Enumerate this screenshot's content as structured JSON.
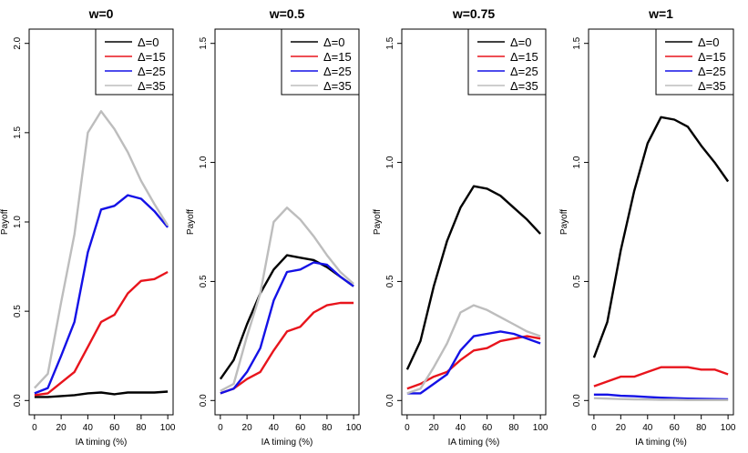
{
  "chart_data": [
    {
      "type": "line",
      "title": "w=0",
      "xlabel": "IA timing (%)",
      "ylabel": "Payoff",
      "x": [
        0,
        10,
        20,
        30,
        40,
        50,
        60,
        70,
        80,
        90,
        100
      ],
      "xlim": [
        0,
        100
      ],
      "ylim": [
        0,
        2.0
      ],
      "xticks": [
        "0",
        "20",
        "40",
        "60",
        "80",
        "100"
      ],
      "yticks": [
        "0.0",
        "0.5",
        "1.0",
        "1.5",
        "2.0"
      ],
      "legend_position": "top-right",
      "grid": false,
      "series": [
        {
          "name": "Δ=0",
          "color": "#000000",
          "values": [
            0.02,
            0.02,
            0.025,
            0.03,
            0.04,
            0.045,
            0.035,
            0.045,
            0.045,
            0.045,
            0.05
          ]
        },
        {
          "name": "Δ=15",
          "color": "#e8141c",
          "values": [
            0.03,
            0.04,
            0.1,
            0.16,
            0.3,
            0.44,
            0.48,
            0.6,
            0.67,
            0.68,
            0.72
          ]
        },
        {
          "name": "Δ=25",
          "color": "#1411e6",
          "values": [
            0.04,
            0.07,
            0.25,
            0.44,
            0.83,
            1.07,
            1.09,
            1.15,
            1.13,
            1.06,
            0.97
          ]
        },
        {
          "name": "Δ=35",
          "color": "#bdbdbd",
          "values": [
            0.07,
            0.15,
            0.55,
            0.93,
            1.5,
            1.62,
            1.52,
            1.39,
            1.23,
            1.1,
            0.98
          ]
        }
      ]
    },
    {
      "type": "line",
      "title": "w=0.5",
      "xlabel": "IA timing (%)",
      "ylabel": "Payoff",
      "x": [
        0,
        10,
        20,
        30,
        40,
        50,
        60,
        70,
        80,
        90,
        100
      ],
      "xlim": [
        0,
        100
      ],
      "ylim": [
        0,
        1.5
      ],
      "xticks": [
        "0",
        "20",
        "40",
        "60",
        "80",
        "100"
      ],
      "yticks": [
        "0.0",
        "0.5",
        "1.0",
        "1.5"
      ],
      "legend_position": "top-right",
      "grid": false,
      "series": [
        {
          "name": "Δ=0",
          "color": "#000000",
          "values": [
            0.09,
            0.17,
            0.32,
            0.45,
            0.55,
            0.61,
            0.6,
            0.59,
            0.56,
            0.52,
            0.48
          ]
        },
        {
          "name": "Δ=15",
          "color": "#e8141c",
          "values": [
            0.03,
            0.05,
            0.09,
            0.12,
            0.21,
            0.29,
            0.31,
            0.37,
            0.4,
            0.41,
            0.41
          ]
        },
        {
          "name": "Δ=25",
          "color": "#1411e6",
          "values": [
            0.03,
            0.05,
            0.12,
            0.22,
            0.42,
            0.54,
            0.55,
            0.58,
            0.57,
            0.52,
            0.48
          ]
        },
        {
          "name": "Δ=35",
          "color": "#bdbdbd",
          "values": [
            0.04,
            0.07,
            0.27,
            0.45,
            0.75,
            0.81,
            0.76,
            0.69,
            0.61,
            0.54,
            0.49
          ]
        }
      ]
    },
    {
      "type": "line",
      "title": "w=0.75",
      "xlabel": "IA timing (%)",
      "ylabel": "Payoff",
      "x": [
        0,
        10,
        20,
        30,
        40,
        50,
        60,
        70,
        80,
        90,
        100
      ],
      "xlim": [
        0,
        100
      ],
      "ylim": [
        0,
        1.5
      ],
      "xticks": [
        "0",
        "20",
        "40",
        "60",
        "80",
        "100"
      ],
      "yticks": [
        "0.0",
        "0.5",
        "1.0",
        "1.5"
      ],
      "legend_position": "top-right",
      "grid": false,
      "series": [
        {
          "name": "Δ=0",
          "color": "#000000",
          "values": [
            0.13,
            0.25,
            0.48,
            0.67,
            0.81,
            0.9,
            0.89,
            0.86,
            0.81,
            0.76,
            0.7
          ]
        },
        {
          "name": "Δ=15",
          "color": "#e8141c",
          "values": [
            0.05,
            0.07,
            0.1,
            0.12,
            0.17,
            0.21,
            0.22,
            0.25,
            0.26,
            0.27,
            0.26
          ]
        },
        {
          "name": "Δ=25",
          "color": "#1411e6",
          "values": [
            0.03,
            0.03,
            0.07,
            0.11,
            0.21,
            0.27,
            0.28,
            0.29,
            0.28,
            0.26,
            0.24
          ]
        },
        {
          "name": "Δ=35",
          "color": "#bdbdbd",
          "values": [
            0.03,
            0.05,
            0.14,
            0.24,
            0.37,
            0.4,
            0.38,
            0.35,
            0.32,
            0.29,
            0.27
          ]
        }
      ]
    },
    {
      "type": "line",
      "title": "w=1",
      "xlabel": "IA timing (%)",
      "ylabel": "Payoff",
      "x": [
        0,
        10,
        20,
        30,
        40,
        50,
        60,
        70,
        80,
        90,
        100
      ],
      "xlim": [
        0,
        100
      ],
      "ylim": [
        0,
        1.5
      ],
      "xticks": [
        "0",
        "20",
        "40",
        "60",
        "80",
        "100"
      ],
      "yticks": [
        "0.0",
        "0.5",
        "1.0",
        "1.5"
      ],
      "legend_position": "top-right",
      "grid": false,
      "series": [
        {
          "name": "Δ=0",
          "color": "#000000",
          "values": [
            0.18,
            0.33,
            0.63,
            0.88,
            1.08,
            1.19,
            1.18,
            1.15,
            1.07,
            1.0,
            0.92
          ]
        },
        {
          "name": "Δ=15",
          "color": "#e8141c",
          "values": [
            0.06,
            0.08,
            0.1,
            0.1,
            0.12,
            0.14,
            0.14,
            0.14,
            0.13,
            0.13,
            0.11
          ]
        },
        {
          "name": "Δ=25",
          "color": "#1411e6",
          "values": [
            0.025,
            0.025,
            0.02,
            0.018,
            0.015,
            0.012,
            0.01,
            0.008,
            0.007,
            0.006,
            0.005
          ]
        },
        {
          "name": "Δ=35",
          "color": "#bdbdbd",
          "values": [
            0.01,
            0.008,
            0.006,
            0.005,
            0.004,
            0.003,
            0.003,
            0.002,
            0.002,
            0.002,
            0.002
          ]
        }
      ]
    }
  ]
}
